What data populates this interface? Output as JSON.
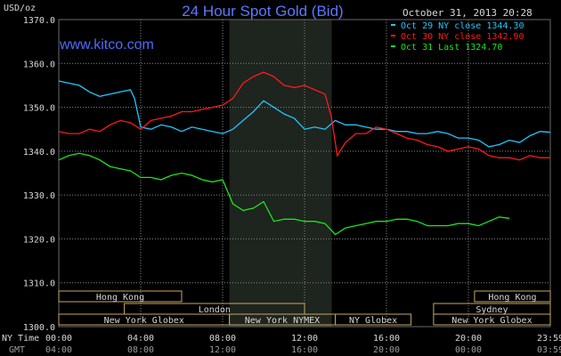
{
  "chart_data": {
    "type": "line",
    "title": "24 Hour Spot Gold (Bid)",
    "watermark": "www.kitco.com",
    "date_stamp": "October 31, 2013 20:28",
    "ylabel": "USD/oz",
    "ylim": [
      1300,
      1370
    ],
    "yticks": [
      "1300.0",
      "1310.0",
      "1320.0",
      "1330.0",
      "1340.0",
      "1350.0",
      "1360.0",
      "1370.0"
    ],
    "xlim": [
      0,
      24
    ],
    "xticks_ny": [
      "00:00",
      "04:00",
      "08:00",
      "12:00",
      "16:00",
      "20:00",
      "23:59"
    ],
    "xticks_gmt": [
      "04:00",
      "08:00",
      "12:00",
      "16:00",
      "20:00",
      "00:00",
      "03:59"
    ],
    "x_row_labels": [
      "NY Time",
      "GMT"
    ],
    "grid": true,
    "legend_position": "top-right",
    "colors": {
      "oct29": "#1fc7ff",
      "oct30": "#ff1a1a",
      "oct31": "#19e619",
      "title": "#5a78ff",
      "watermark": "#4f6bff",
      "text": "#d8d8d8",
      "grid": "#8a8a8a",
      "session_box": "#c8a860"
    },
    "series": [
      {
        "name": "Oct 29 NY close 1344.30",
        "x": [
          0,
          0.5,
          1,
          1.5,
          2,
          2.5,
          3,
          3.5,
          3.7,
          4,
          4.5,
          5,
          5.5,
          6,
          6.5,
          7,
          7.5,
          8,
          8.5,
          9,
          9.5,
          10,
          10.5,
          11,
          11.5,
          12,
          12.5,
          13,
          13.5,
          14,
          14.5,
          15,
          15.5,
          16,
          16.5,
          17,
          17.5,
          18,
          18.5,
          19,
          19.5,
          20,
          20.5,
          21,
          21.5,
          22,
          22.5,
          23,
          23.5,
          24
        ],
        "values": [
          1356,
          1355.5,
          1355,
          1353.5,
          1352.5,
          1353,
          1353.5,
          1354,
          1352,
          1345.5,
          1345,
          1346,
          1345.5,
          1344.5,
          1345.5,
          1345,
          1344.5,
          1344,
          1345,
          1347,
          1349,
          1351.5,
          1350,
          1348.5,
          1347.5,
          1345,
          1345.5,
          1345,
          1347,
          1346,
          1346,
          1345.5,
          1345,
          1345,
          1344.5,
          1344.5,
          1344,
          1344,
          1344.5,
          1344,
          1343,
          1343,
          1342.5,
          1341,
          1341.5,
          1342.5,
          1342,
          1343.5,
          1344.5,
          1344.3
        ]
      },
      {
        "name": "Oct 30 NY close 1342.90",
        "x": [
          0,
          0.5,
          1,
          1.5,
          2,
          2.5,
          3,
          3.5,
          4,
          4.5,
          5,
          5.5,
          6,
          6.5,
          7,
          7.5,
          8,
          8.5,
          9,
          9.5,
          10,
          10.5,
          11,
          11.5,
          12,
          12.5,
          13,
          13.3,
          13.6,
          14,
          14.5,
          15,
          15.5,
          16,
          16.5,
          17,
          17.5,
          18,
          18.5,
          19,
          19.5,
          20,
          20.5,
          21,
          21.5,
          22,
          22.5,
          23,
          23.5,
          24
        ],
        "values": [
          1344.5,
          1344,
          1344,
          1345,
          1344.5,
          1346,
          1347,
          1346.5,
          1345,
          1347,
          1347.5,
          1348,
          1349,
          1349,
          1349.5,
          1350,
          1350.5,
          1352,
          1355.5,
          1357,
          1358,
          1357,
          1355,
          1354.5,
          1355,
          1354,
          1353,
          1348,
          1339,
          1342,
          1344,
          1344,
          1345.5,
          1345,
          1344,
          1343,
          1342.5,
          1341.5,
          1341,
          1340,
          1340.5,
          1341,
          1340.5,
          1339,
          1338.5,
          1338.5,
          1338,
          1339,
          1338.5,
          1338.5
        ]
      },
      {
        "name": "Oct 31 Last 1324.70",
        "x": [
          0,
          0.5,
          1,
          1.5,
          2,
          2.5,
          3,
          3.5,
          4,
          4.5,
          5,
          5.5,
          6,
          6.5,
          7,
          7.5,
          8,
          8.5,
          9,
          9.5,
          10,
          10.5,
          11,
          11.5,
          12,
          12.5,
          13,
          13.5,
          14,
          14.5,
          15,
          15.5,
          16,
          16.5,
          17,
          17.5,
          18,
          18.5,
          19,
          19.5,
          20,
          20.5,
          21,
          21.5,
          22
        ],
        "values": [
          1338,
          1339,
          1339.5,
          1339,
          1338,
          1336.5,
          1336,
          1335.5,
          1334,
          1334,
          1333.5,
          1334.5,
          1335,
          1334.5,
          1333.5,
          1333,
          1333.5,
          1328,
          1326.5,
          1327,
          1328.5,
          1324,
          1324.5,
          1324.5,
          1324,
          1324,
          1323.5,
          1321,
          1322.5,
          1323,
          1323.5,
          1324,
          1324,
          1324.5,
          1324.5,
          1324,
          1323,
          1323,
          1323,
          1323.5,
          1323.5,
          1323,
          1324,
          1325,
          1324.7
        ]
      }
    ],
    "shaded_range": [
      8.33,
      13.33
    ],
    "sessions": [
      {
        "label": "Hong Kong",
        "start": 0,
        "end": 6.0,
        "row": 0
      },
      {
        "label": "Hong Kong",
        "start": 20.3,
        "end": 24,
        "row": 0
      },
      {
        "label": "London",
        "start": 3.2,
        "end": 12.0,
        "row": 1
      },
      {
        "label": "Sydney",
        "start": 18.3,
        "end": 24,
        "row": 1
      },
      {
        "label": "New York Globex",
        "start": 0,
        "end": 8.33,
        "row": 2
      },
      {
        "label": "New York NYMEX",
        "start": 8.33,
        "end": 13.5,
        "row": 2
      },
      {
        "label": "NY Globex",
        "start": 13.5,
        "end": 17.2,
        "row": 2
      },
      {
        "label": "New York Globex",
        "start": 18.3,
        "end": 24,
        "row": 2
      }
    ]
  }
}
